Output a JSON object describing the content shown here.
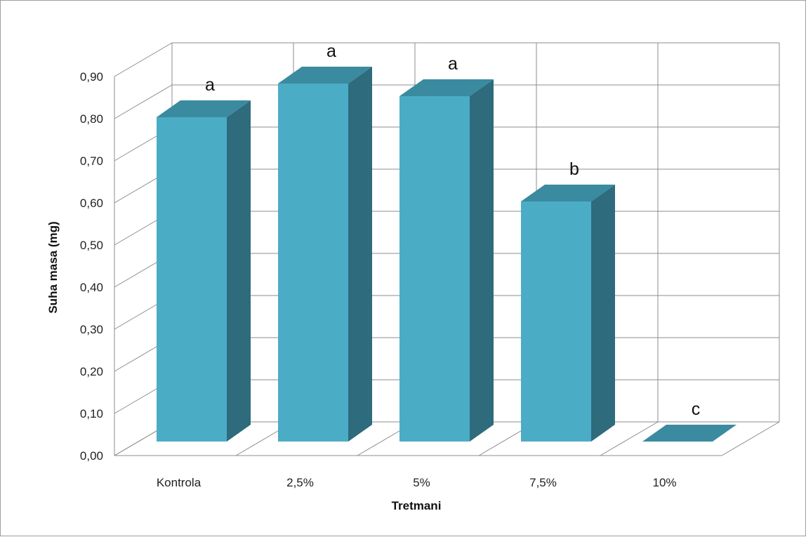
{
  "chart_data": {
    "type": "bar",
    "title": "",
    "xlabel": "Tretmani",
    "ylabel": "Suha masa (mg)",
    "categories": [
      "Kontrola",
      "2,5%",
      "5%",
      "7,5%",
      "10%"
    ],
    "values": [
      0.77,
      0.85,
      0.82,
      0.57,
      0.0
    ],
    "annotations": [
      "a",
      "a",
      "a",
      "b",
      "c"
    ],
    "ylim": [
      0,
      0.9
    ],
    "yticks": [
      "0,00",
      "0,10",
      "0,20",
      "0,30",
      "0,40",
      "0,50",
      "0,60",
      "0,70",
      "0,80",
      "0,90"
    ],
    "grid": true,
    "three_d": true,
    "legend": "none",
    "colors": {
      "bar_front": "#4bacc6",
      "bar_top": "#3a8aa0",
      "bar_side": "#2e6b7c",
      "grid": "#8c8c8c"
    }
  }
}
